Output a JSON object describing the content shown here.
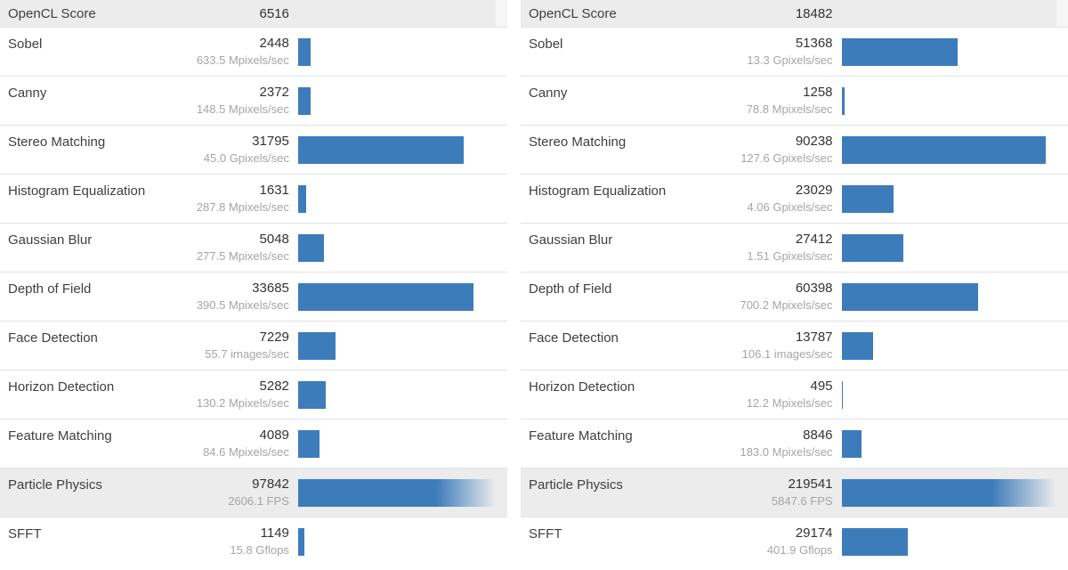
{
  "colors": {
    "accent": "#3d7cba",
    "header_bg": "#ececec",
    "highlight_bg": "#ececec",
    "divider": "#e2e2e2",
    "rate_text": "#a5a5a5",
    "gutter": "#f6f6f6",
    "label_text": "#3f3f3f",
    "score_text": "#333333"
  },
  "chart_data": [
    {
      "type": "bar",
      "panel": "left",
      "title": "OpenCL Score",
      "total_score": 6516,
      "bar_max": 38000,
      "rows": [
        {
          "label": "Sobel",
          "score": 2448,
          "rate": "633.5 Mpixels/sec"
        },
        {
          "label": "Canny",
          "score": 2372,
          "rate": "148.5 Mpixels/sec"
        },
        {
          "label": "Stereo Matching",
          "score": 31795,
          "rate": "45.0 Gpixels/sec"
        },
        {
          "label": "Histogram Equalization",
          "score": 1631,
          "rate": "287.8 Mpixels/sec"
        },
        {
          "label": "Gaussian Blur",
          "score": 5048,
          "rate": "277.5 Mpixels/sec"
        },
        {
          "label": "Depth of Field",
          "score": 33685,
          "rate": "390.5 Mpixels/sec"
        },
        {
          "label": "Face Detection",
          "score": 7229,
          "rate": "55.7 images/sec"
        },
        {
          "label": "Horizon Detection",
          "score": 5282,
          "rate": "130.2 Mpixels/sec"
        },
        {
          "label": "Feature Matching",
          "score": 4089,
          "rate": "84.6 Mpixels/sec"
        },
        {
          "label": "Particle Physics",
          "score": 97842,
          "rate": "2606.1 FPS",
          "highlight": true
        },
        {
          "label": "SFFT",
          "score": 1149,
          "rate": "15.8 Gflops"
        }
      ]
    },
    {
      "type": "bar",
      "panel": "right",
      "title": "OpenCL Score",
      "total_score": 18482,
      "bar_max": 95000,
      "rows": [
        {
          "label": "Sobel",
          "score": 51368,
          "rate": "13.3 Gpixels/sec"
        },
        {
          "label": "Canny",
          "score": 1258,
          "rate": "78.8 Mpixels/sec"
        },
        {
          "label": "Stereo Matching",
          "score": 90238,
          "rate": "127.6 Gpixels/sec"
        },
        {
          "label": "Histogram Equalization",
          "score": 23029,
          "rate": "4.06 Gpixels/sec"
        },
        {
          "label": "Gaussian Blur",
          "score": 27412,
          "rate": "1.51 Gpixels/sec"
        },
        {
          "label": "Depth of Field",
          "score": 60398,
          "rate": "700.2 Mpixels/sec"
        },
        {
          "label": "Face Detection",
          "score": 13787,
          "rate": "106.1 images/sec"
        },
        {
          "label": "Horizon Detection",
          "score": 495,
          "rate": "12.2 Mpixels/sec"
        },
        {
          "label": "Feature Matching",
          "score": 8846,
          "rate": "183.0 Mpixels/sec"
        },
        {
          "label": "Particle Physics",
          "score": 219541,
          "rate": "5847.6 FPS",
          "highlight": true
        },
        {
          "label": "SFFT",
          "score": 29174,
          "rate": "401.9 Gflops"
        }
      ]
    }
  ]
}
